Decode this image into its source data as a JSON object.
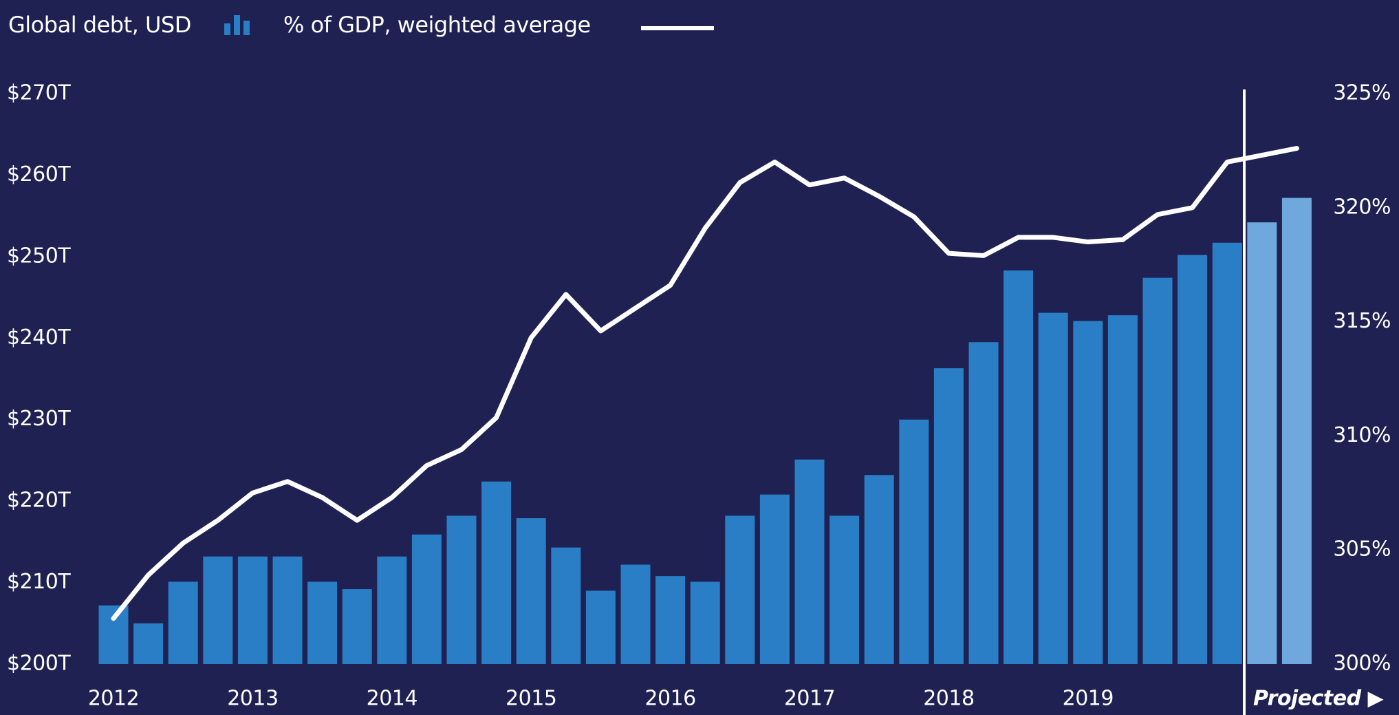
{
  "chart_data": {
    "type": "bar_line",
    "categories": [
      "2012",
      null,
      null,
      null,
      "2013",
      null,
      null,
      null,
      "2014",
      null,
      null,
      null,
      "2015",
      null,
      null,
      null,
      "2016",
      null,
      null,
      null,
      "2017",
      null,
      null,
      null,
      "2018",
      null,
      null,
      null,
      "2019",
      null,
      null,
      null,
      null,
      null,
      null
    ],
    "series": [
      {
        "name": "Global debt, USD",
        "type": "bar",
        "color": "#2a7ec6",
        "colors": [
          "#2a7ec6",
          "#2a7ec6",
          "#2a7ec6",
          "#2a7ec6",
          "#2a7ec6",
          "#2a7ec6",
          "#2a7ec6",
          "#2a7ec6",
          "#2a7ec6",
          "#2a7ec6",
          "#2a7ec6",
          "#2a7ec6",
          "#2a7ec6",
          "#2a7ec6",
          "#2a7ec6",
          "#2a7ec6",
          "#2a7ec6",
          "#2a7ec6",
          "#2a7ec6",
          "#2a7ec6",
          "#2a7ec6",
          "#2a7ec6",
          "#2a7ec6",
          "#2a7ec6",
          "#2a7ec6",
          "#2a7ec6",
          "#2a7ec6",
          "#2a7ec6",
          "#2a7ec6",
          "#2a7ec6",
          "#2a7ec6",
          "#2a7ec6",
          "#2a7ec6",
          "#6fa8dc",
          "#6fa8dc"
        ],
        "values": [
          207.2,
          205,
          210.1,
          213.2,
          213.2,
          213.2,
          210.1,
          209.2,
          213.2,
          215.9,
          218.2,
          222.4,
          217.9,
          214.3,
          209,
          212.2,
          210.8,
          210.1,
          218.2,
          220.8,
          225.1,
          218.2,
          223.2,
          230,
          236.3,
          239.5,
          248.3,
          243.1,
          242.1,
          242.8,
          247.4,
          250.2,
          251.7,
          254.2,
          257.2
        ]
      },
      {
        "name": "% of GDP, weighted average",
        "type": "line",
        "color": "#ffffff",
        "axis": "y2",
        "values": [
          302.0,
          303.9,
          305.3,
          306.3,
          307.5,
          308.0,
          307.3,
          306.3,
          307.3,
          308.7,
          309.4,
          310.8,
          314.3,
          316.2,
          314.6,
          315.6,
          316.6,
          319.1,
          321.1,
          322.0,
          321.0,
          321.3,
          320.5,
          319.6,
          318.0,
          317.9,
          318.7,
          318.7,
          318.5,
          318.6,
          319.7,
          320.0,
          322.0,
          322.3,
          322.6
        ]
      }
    ],
    "ylim": [
      200,
      270
    ],
    "yticks": [
      {
        "value": 200,
        "label": "$200T"
      },
      {
        "value": 210,
        "label": "$210T"
      },
      {
        "value": 220,
        "label": "$220T"
      },
      {
        "value": 230,
        "label": "$230T"
      },
      {
        "value": 240,
        "label": "$240T"
      },
      {
        "value": 250,
        "label": "$250T"
      },
      {
        "value": 260,
        "label": "$260T"
      },
      {
        "value": 270,
        "label": "$270T"
      }
    ],
    "y2lim": [
      300,
      325
    ],
    "y2ticks": [
      {
        "value": 300,
        "label": "300%"
      },
      {
        "value": 305,
        "label": "305%"
      },
      {
        "value": 310,
        "label": "310%"
      },
      {
        "value": 315,
        "label": "315%"
      },
      {
        "value": 320,
        "label": "320%"
      },
      {
        "value": 325,
        "label": "325%"
      }
    ],
    "annotation": "Projected ▶",
    "grid": false
  }
}
